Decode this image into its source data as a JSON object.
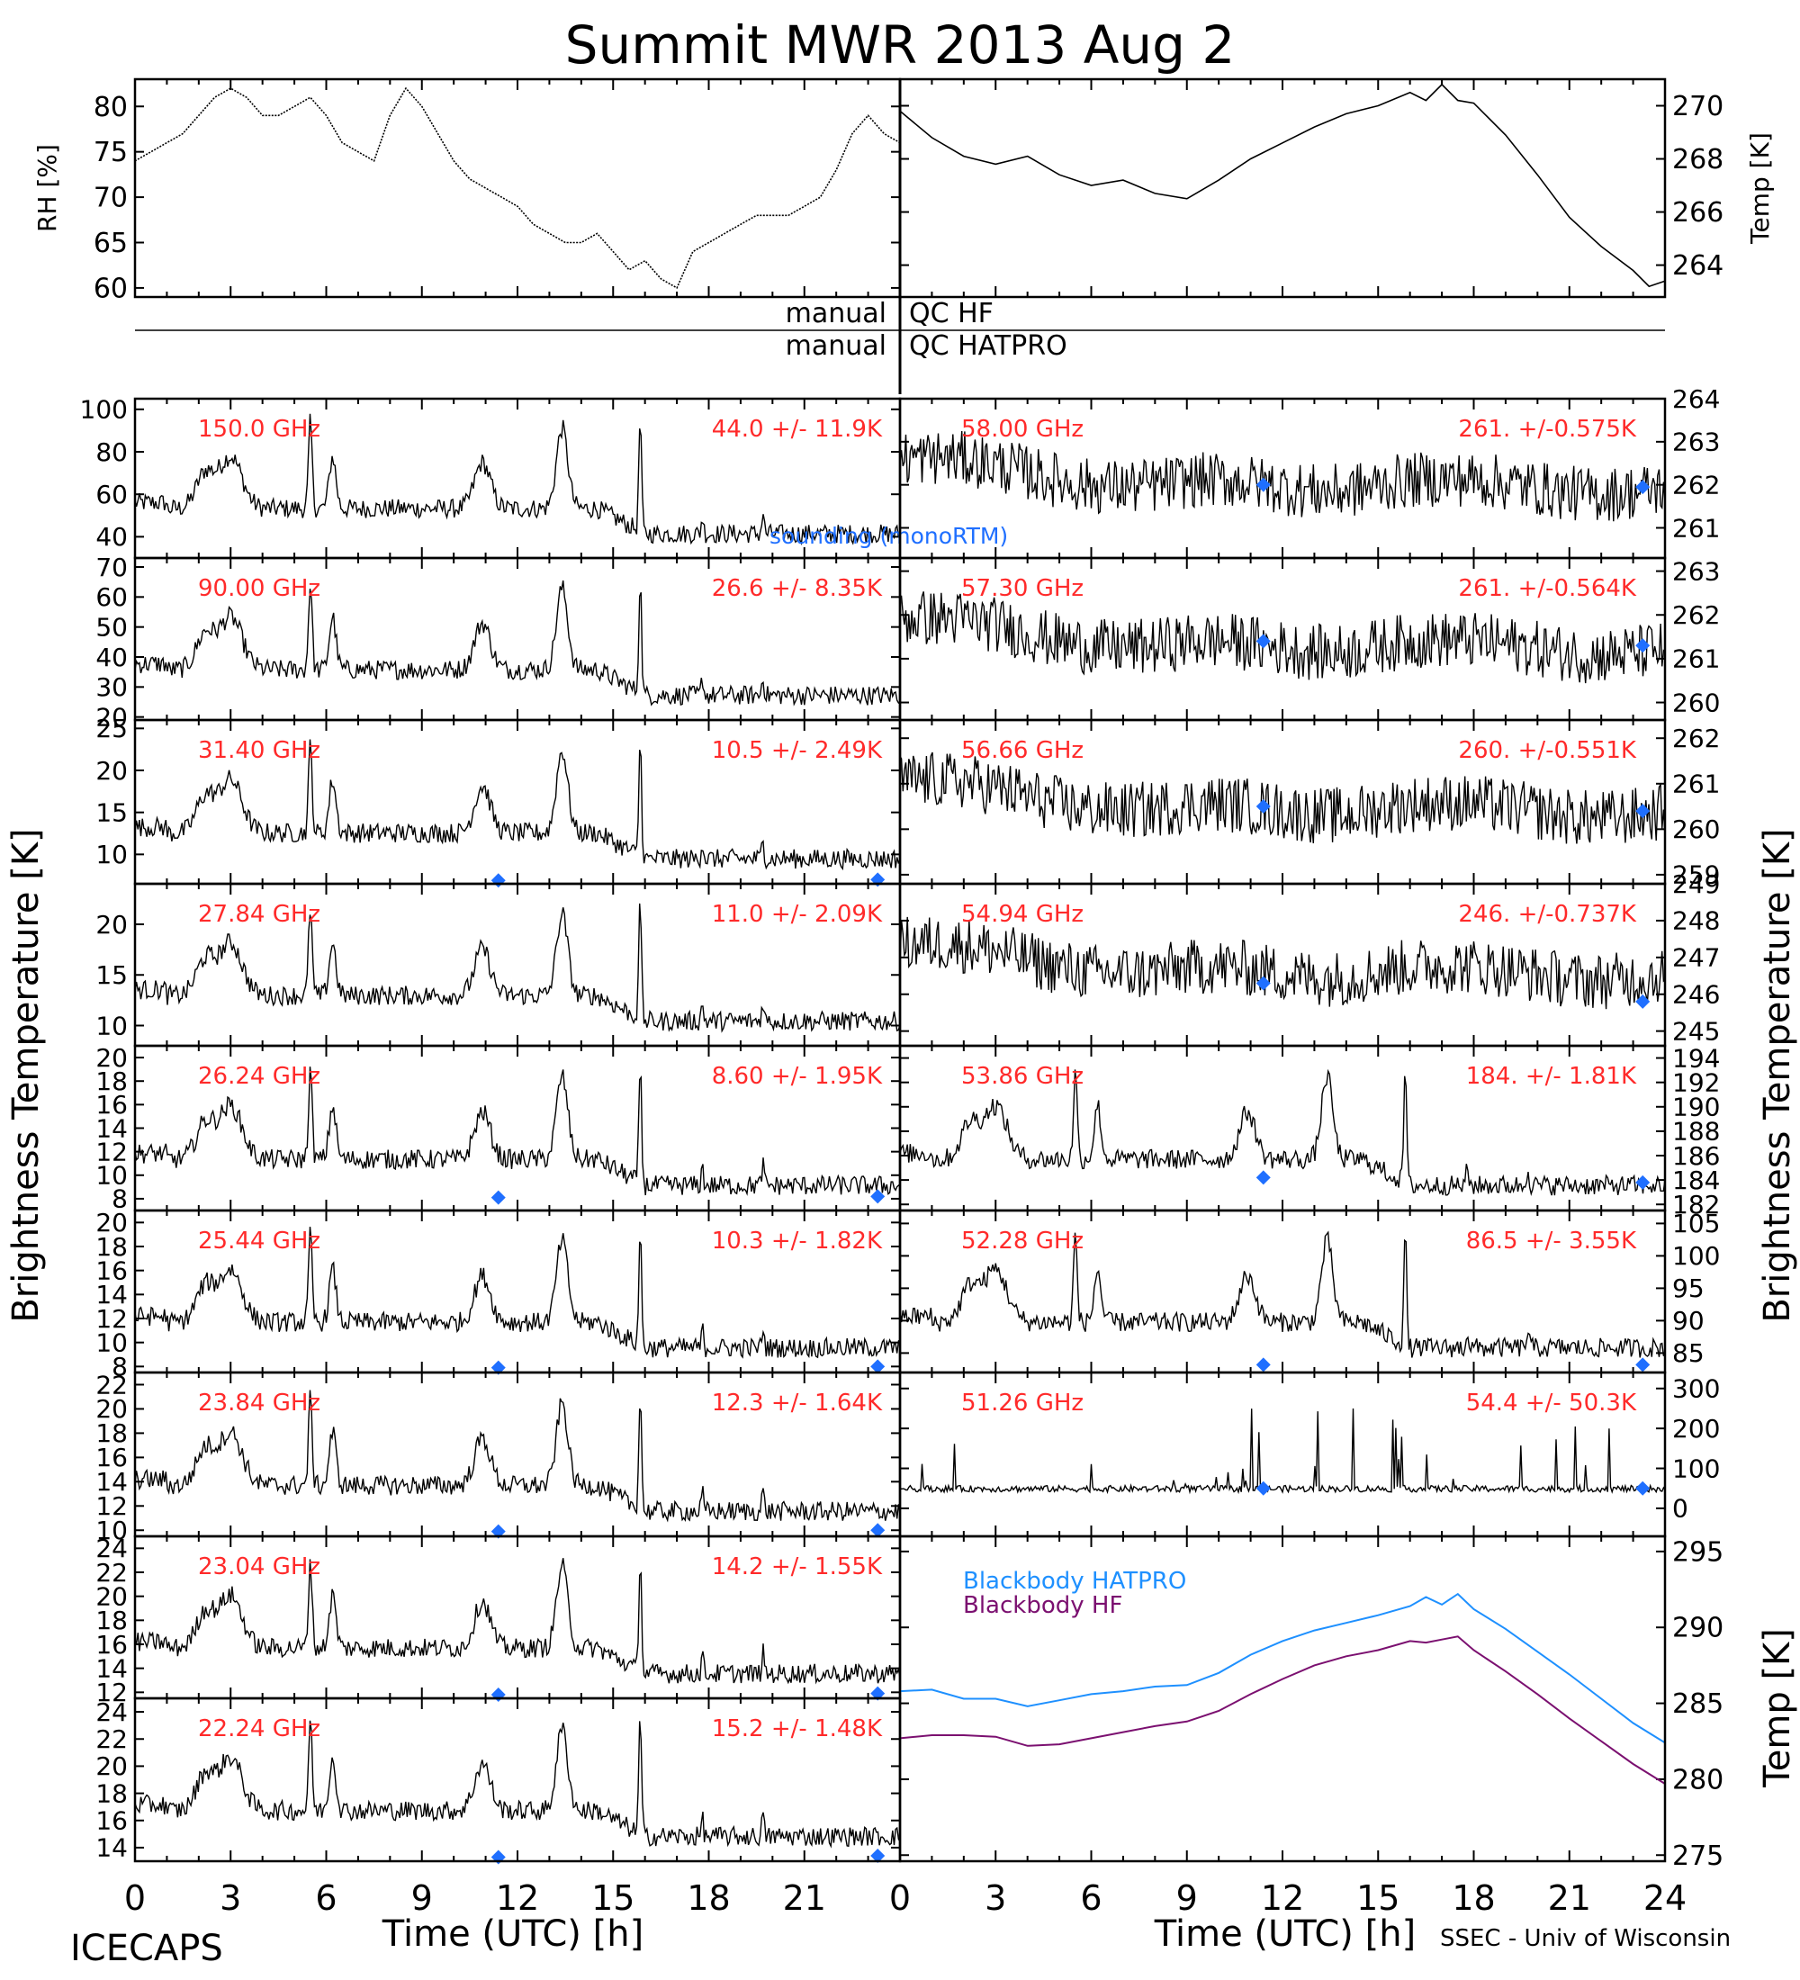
{
  "title": "Summit MWR 2013 Aug  2",
  "footer_left": "ICECAPS",
  "footer_right": "SSEC - Univ of Wisconsin",
  "colors": {
    "freq_label": "#ff2a2a",
    "sounding": "#1f6fff",
    "hatpro": "#1e90ff",
    "hf": "#7b1070",
    "trace": "#000000"
  },
  "qc": {
    "hf_label_left": "manual",
    "hf_label_right": "QC HF",
    "hatpro_label_left": "manual",
    "hatpro_label_right": "QC HATPRO"
  },
  "chart_data": [
    {
      "id": "rh",
      "type": "line",
      "ylabel": "RH [%]",
      "xlim": [
        0,
        24
      ],
      "ylim": [
        59,
        83
      ],
      "yticks": [
        60,
        65,
        70,
        75,
        80
      ],
      "x": [
        0,
        0.5,
        1,
        1.5,
        2,
        2.5,
        3,
        3.5,
        4,
        4.5,
        5,
        5.5,
        6,
        6.5,
        7,
        7.5,
        8,
        8.5,
        9,
        9.5,
        10,
        10.5,
        11,
        11.5,
        12,
        12.5,
        13,
        13.5,
        14,
        14.5,
        15,
        15.5,
        16,
        16.5,
        17,
        17.5,
        18,
        18.5,
        19,
        19.5,
        20,
        20.5,
        21,
        21.5,
        22,
        22.5,
        23,
        23.5,
        24
      ],
      "y": [
        74,
        75,
        76,
        77,
        79,
        81,
        82,
        81,
        79,
        79,
        80,
        81,
        79,
        76,
        75,
        74,
        79,
        82,
        80,
        77,
        74,
        72,
        71,
        70,
        69,
        67,
        66,
        65,
        65,
        66,
        64,
        62,
        63,
        61,
        60,
        64,
        65,
        66,
        67,
        68,
        68,
        68,
        69,
        70,
        73,
        77,
        79,
        77,
        76
      ]
    },
    {
      "id": "temp",
      "type": "line",
      "ylabel": "Temp [K]",
      "xlim": [
        0,
        24
      ],
      "ylim": [
        262.8,
        271
      ],
      "yticks": [
        264,
        266,
        268,
        270
      ],
      "x": [
        0,
        1,
        2,
        3,
        4,
        5,
        6,
        7,
        8,
        9,
        10,
        11,
        12,
        13,
        14,
        15,
        16,
        16.5,
        17,
        17.5,
        18,
        19,
        20,
        21,
        22,
        23,
        23.5,
        24
      ],
      "y": [
        269.8,
        268.8,
        268.1,
        267.8,
        268.1,
        267.4,
        267.0,
        267.2,
        266.7,
        266.5,
        267.2,
        268.0,
        268.6,
        269.2,
        269.7,
        270.0,
        270.5,
        270.2,
        270.8,
        270.2,
        270.1,
        268.9,
        267.4,
        265.8,
        264.7,
        263.8,
        263.2,
        263.4
      ]
    },
    {
      "id": "p150",
      "type": "line",
      "frequency": "150.0 GHz",
      "stats": "44.0 +/-  11.9K",
      "yticks": [
        40,
        60,
        80,
        100
      ],
      "ylim": [
        30,
        105
      ],
      "sounding_label": "sounding (monoRTM)",
      "sounding": []
    },
    {
      "id": "p90",
      "type": "line",
      "frequency": "90.00 GHz",
      "stats": "26.6 +/-  8.35K",
      "yticks": [
        20,
        30,
        40,
        50,
        60,
        70
      ],
      "ylim": [
        19,
        73
      ],
      "sounding": []
    },
    {
      "id": "p3140",
      "type": "line",
      "frequency": "31.40 GHz",
      "stats": "10.5 +/- 2.49K",
      "yticks": [
        10,
        15,
        20,
        25
      ],
      "ylim": [
        6.5,
        26
      ],
      "sounding": [
        [
          11.4,
          6.9
        ],
        [
          23.3,
          7.0
        ]
      ]
    },
    {
      "id": "p2784",
      "type": "line",
      "frequency": "27.84 GHz",
      "stats": "11.0 +/- 2.09K",
      "yticks": [
        10,
        15,
        20
      ],
      "ylim": [
        8,
        24
      ],
      "sounding": []
    },
    {
      "id": "p2624",
      "type": "line",
      "frequency": "26.24 GHz",
      "stats": "8.60 +/- 1.95K",
      "yticks": [
        8,
        10,
        12,
        14,
        16,
        18,
        20
      ],
      "ylim": [
        7,
        21
      ],
      "sounding": [
        [
          11.4,
          8.1
        ],
        [
          23.3,
          8.2
        ]
      ]
    },
    {
      "id": "p2544",
      "type": "line",
      "frequency": "25.44 GHz",
      "stats": "10.3 +/- 1.82K",
      "yticks": [
        8,
        10,
        12,
        14,
        16,
        18,
        20
      ],
      "ylim": [
        7.5,
        21
      ],
      "sounding": [
        [
          11.4,
          7.9
        ],
        [
          23.3,
          8.0
        ]
      ]
    },
    {
      "id": "p2384",
      "type": "line",
      "frequency": "23.84 GHz",
      "stats": "12.3 +/- 1.64K",
      "yticks": [
        10,
        12,
        14,
        16,
        18,
        20,
        22
      ],
      "ylim": [
        9.5,
        23
      ],
      "sounding": [
        [
          11.4,
          9.9
        ],
        [
          23.3,
          10.0
        ]
      ]
    },
    {
      "id": "p2304",
      "type": "line",
      "frequency": "23.04 GHz",
      "stats": "14.2 +/- 1.55K",
      "yticks": [
        12,
        14,
        16,
        18,
        20,
        22,
        24
      ],
      "ylim": [
        11.5,
        25
      ],
      "sounding": [
        [
          11.4,
          11.8
        ],
        [
          23.3,
          11.9
        ]
      ]
    },
    {
      "id": "p2224",
      "type": "line",
      "frequency": "22.24 GHz",
      "stats": "15.2 +/- 1.48K",
      "yticks": [
        14,
        16,
        18,
        20,
        22,
        24
      ],
      "ylim": [
        13,
        25
      ],
      "sounding": [
        [
          11.4,
          13.3
        ],
        [
          23.3,
          13.4
        ]
      ]
    },
    {
      "id": "p5800",
      "type": "line",
      "frequency": "58.00 GHz",
      "stats": "261. +/-0.575K",
      "yticks": [
        261,
        262,
        263,
        264
      ],
      "ylim": [
        260.3,
        264
      ],
      "sounding": [
        [
          11.4,
          262.0
        ],
        [
          23.3,
          261.95
        ]
      ]
    },
    {
      "id": "p5730",
      "type": "line",
      "frequency": "57.30 GHz",
      "stats": "261. +/-0.564K",
      "yticks": [
        260,
        261,
        262,
        263
      ],
      "ylim": [
        259.6,
        263.3
      ],
      "sounding": [
        [
          11.4,
          261.4
        ],
        [
          23.3,
          261.3
        ]
      ]
    },
    {
      "id": "p5666",
      "type": "line",
      "frequency": "56.66 GHz",
      "stats": "260. +/-0.551K",
      "yticks": [
        259,
        260,
        261,
        262
      ],
      "ylim": [
        258.8,
        262.4
      ],
      "sounding": [
        [
          11.4,
          260.5
        ],
        [
          23.3,
          260.4
        ]
      ]
    },
    {
      "id": "p5494",
      "type": "line",
      "frequency": "54.94 GHz",
      "stats": "246. +/-0.737K",
      "yticks": [
        245,
        246,
        247,
        248,
        249
      ],
      "ylim": [
        244.6,
        249
      ],
      "sounding": [
        [
          11.4,
          246.3
        ],
        [
          23.3,
          245.8
        ]
      ]
    },
    {
      "id": "p5386",
      "type": "line",
      "frequency": "53.86 GHz",
      "stats": "184. +/- 1.81K",
      "yticks": [
        182,
        184,
        186,
        188,
        190,
        192,
        194
      ],
      "ylim": [
        181.5,
        195
      ],
      "sounding": [
        [
          11.4,
          184.2
        ],
        [
          23.3,
          183.8
        ]
      ]
    },
    {
      "id": "p5228",
      "type": "line",
      "frequency": "52.28 GHz",
      "stats": "86.5 +/- 3.55K",
      "yticks": [
        85,
        90,
        95,
        100,
        105
      ],
      "ylim": [
        82,
        107
      ],
      "sounding": [
        [
          11.4,
          83.2
        ],
        [
          23.3,
          83.2
        ]
      ]
    },
    {
      "id": "p5126",
      "type": "line",
      "frequency": "51.26 GHz",
      "stats": "54.4 +/- 50.3K",
      "yticks": [
        0,
        100,
        200,
        300
      ],
      "ylim": [
        -70,
        340
      ],
      "sounding": [
        [
          11.4,
          50
        ],
        [
          23.3,
          50
        ]
      ]
    },
    {
      "id": "blackbody",
      "type": "line",
      "ylabel": "Temp [K]",
      "xlim": [
        0,
        24
      ],
      "ylim": [
        274.6,
        296
      ],
      "yticks": [
        275,
        280,
        285,
        290,
        295
      ],
      "x": [
        0,
        1,
        2,
        3,
        4,
        5,
        6,
        7,
        8,
        9,
        10,
        11,
        12,
        13,
        14,
        15,
        16,
        16.5,
        17,
        17.5,
        18,
        19,
        20,
        21,
        22,
        23,
        24
      ],
      "series": [
        {
          "name": "Blackbody HATPRO",
          "values": [
            285.8,
            285.9,
            285.3,
            285.3,
            284.8,
            285.2,
            285.6,
            285.8,
            286.1,
            286.2,
            287.0,
            288.2,
            289.1,
            289.8,
            290.3,
            290.8,
            291.4,
            292.0,
            291.5,
            292.2,
            291.2,
            289.9,
            288.4,
            286.9,
            285.3,
            283.7,
            282.4
          ]
        },
        {
          "name": "Blackbody HF",
          "values": [
            282.7,
            282.9,
            282.9,
            282.8,
            282.2,
            282.3,
            282.7,
            283.1,
            283.5,
            283.8,
            284.5,
            285.6,
            286.6,
            287.5,
            288.1,
            288.5,
            289.1,
            289.0,
            289.2,
            289.4,
            288.5,
            287.1,
            285.6,
            284.0,
            282.5,
            281.0,
            279.7
          ]
        }
      ]
    }
  ],
  "axes": {
    "left_ylabel": "Brightness Temperature [K]",
    "right_ylabel": "Brightness Temperature [K]",
    "xlabel": "Time (UTC) [h]",
    "xticks": [
      0,
      3,
      6,
      9,
      12,
      15,
      18,
      21,
      24
    ],
    "left_xtick_labels": [
      "0",
      "3",
      "6",
      "9",
      "12",
      "15",
      "18",
      "21"
    ],
    "right_xtick_labels": [
      "0",
      "3",
      "6",
      "9",
      "12",
      "15",
      "18",
      "21",
      "24"
    ]
  }
}
